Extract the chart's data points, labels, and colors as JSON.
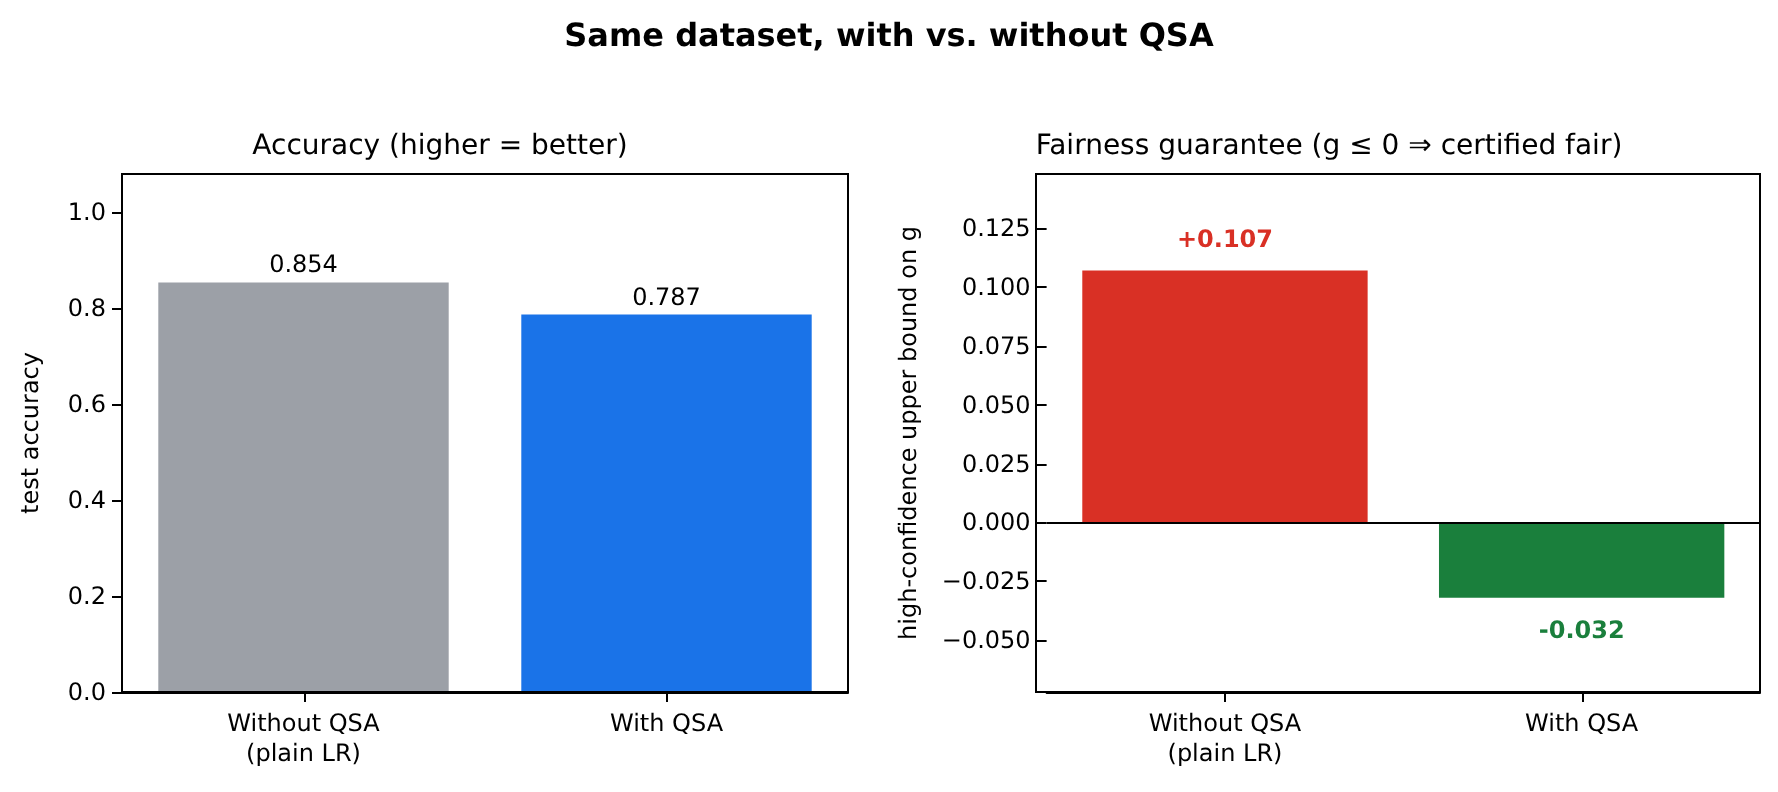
{
  "chart_data": [
    {
      "type": "bar",
      "title": "Accuracy (higher = better)",
      "annotations": [
        "Same dataset, with vs. without QSA"
      ],
      "ylabel": "test accuracy",
      "categories": [
        "Without QSA\n(plain LR)",
        "With QSA"
      ],
      "values": [
        0.854,
        0.787
      ],
      "colors": [
        "#9ca0a7",
        "#1a73e8"
      ],
      "data_labels": true,
      "ylim": [
        0,
        1.08
      ],
      "yticks": [
        {
          "value": 0,
          "label": "0.0"
        },
        0.2,
        0.4,
        0.6,
        0.8,
        {
          "value": 1,
          "label": "1.0"
        }
      ],
      "grid": false
    },
    {
      "type": "bar",
      "title": "Fairness guarantee (g ≤ 0 ⇒ certified fair)",
      "ylabel": "high-confidence upper bound on g",
      "categories": [
        "Without QSA\n(plain LR)",
        "With QSA"
      ],
      "values": [
        0.107,
        -0.032
      ],
      "colors": [
        "#d93025",
        "#1a7f3c"
      ],
      "value_labels": [
        "+0.107",
        "-0.032"
      ],
      "ylim": [
        -0.072,
        0.148
      ],
      "yticks": [
        {
          "value": -0.05,
          "label": "−0.050"
        },
        {
          "value": -0.025,
          "label": "−0.025"
        },
        {
          "value": 0,
          "label": "0.000"
        },
        {
          "value": 0.025,
          "label": "0.025"
        },
        {
          "value": 0.05,
          "label": "0.050"
        },
        {
          "value": 0.075,
          "label": "0.075"
        },
        {
          "value": 0.1,
          "label": "0.100"
        },
        {
          "value": 0.125,
          "label": "0.125"
        }
      ],
      "ref_lines": [
        {
          "axis": "y",
          "value": 0,
          "color": "#000000"
        }
      ],
      "grid": false
    }
  ]
}
